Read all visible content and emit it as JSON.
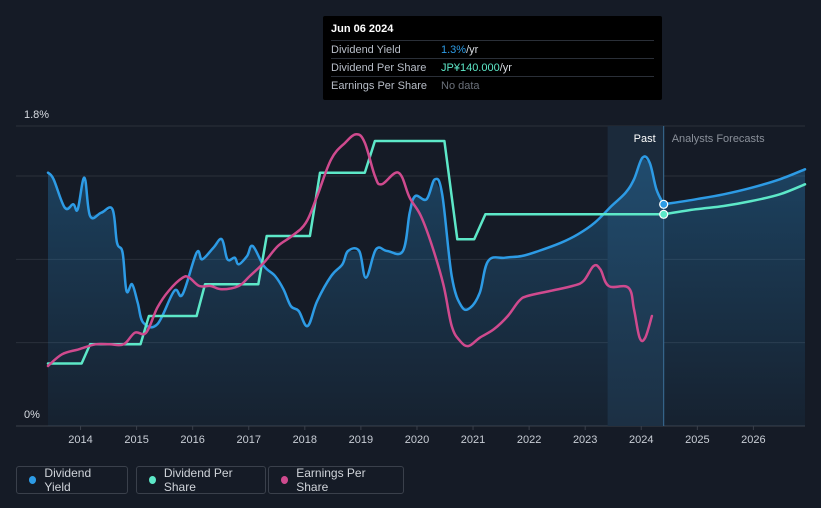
{
  "tooltip": {
    "date": "Jun 06 2024",
    "rows": [
      {
        "label": "Dividend Yield",
        "value": "1.3%",
        "unit": " /yr"
      },
      {
        "label": "Dividend Per Share",
        "value": "JP¥140.000",
        "unit": " /yr"
      },
      {
        "label": "Earnings Per Share",
        "value": "No data",
        "unit": ""
      }
    ]
  },
  "legend": [
    {
      "label": "Dividend Yield",
      "color": "#2d9be5"
    },
    {
      "label": "Dividend Per Share",
      "color": "#5de8c8"
    },
    {
      "label": "Earnings Per Share",
      "color": "#cf4a8e"
    }
  ],
  "chart_data": {
    "type": "line",
    "title": "",
    "y_axis": {
      "top_label": "1.8%",
      "bottom_label": "0%",
      "ylim": [
        0,
        1.8
      ]
    },
    "x_ticks": [
      "2014",
      "2015",
      "2016",
      "2017",
      "2018",
      "2019",
      "2020",
      "2021",
      "2022",
      "2023",
      "2024",
      "2025",
      "2026"
    ],
    "xlim": [
      2013.45,
      2026.95
    ],
    "past_label": "Past",
    "forecast_label": "Analysts Forecasts",
    "past_region": [
      2023.43,
      2024.43
    ],
    "current_x": 2024.43,
    "series": [
      {
        "name": "Dividend Yield",
        "color": "#2d9be5",
        "unit": "%",
        "points": [
          [
            2013.45,
            1.52
          ],
          [
            2013.55,
            1.48
          ],
          [
            2013.75,
            1.31
          ],
          [
            2013.9,
            1.33
          ],
          [
            2013.98,
            1.3
          ],
          [
            2014.1,
            1.49
          ],
          [
            2014.2,
            1.26
          ],
          [
            2014.4,
            1.28
          ],
          [
            2014.6,
            1.3
          ],
          [
            2014.68,
            1.1
          ],
          [
            2014.78,
            1.04
          ],
          [
            2014.85,
            0.81
          ],
          [
            2014.95,
            0.85
          ],
          [
            2015.05,
            0.74
          ],
          [
            2015.15,
            0.62
          ],
          [
            2015.4,
            0.61
          ],
          [
            2015.7,
            0.81
          ],
          [
            2015.85,
            0.79
          ],
          [
            2016.1,
            1.04
          ],
          [
            2016.2,
            1.0
          ],
          [
            2016.4,
            1.07
          ],
          [
            2016.55,
            1.12
          ],
          [
            2016.65,
            1.0
          ],
          [
            2016.78,
            1.01
          ],
          [
            2016.85,
            0.97
          ],
          [
            2017.0,
            1.02
          ],
          [
            2017.1,
            1.08
          ],
          [
            2017.3,
            0.96
          ],
          [
            2017.5,
            0.9
          ],
          [
            2017.65,
            0.82
          ],
          [
            2017.78,
            0.72
          ],
          [
            2017.92,
            0.69
          ],
          [
            2018.08,
            0.6
          ],
          [
            2018.25,
            0.75
          ],
          [
            2018.5,
            0.9
          ],
          [
            2018.7,
            0.97
          ],
          [
            2018.8,
            1.05
          ],
          [
            2019.0,
            1.05
          ],
          [
            2019.12,
            0.89
          ],
          [
            2019.3,
            1.06
          ],
          [
            2019.5,
            1.05
          ],
          [
            2019.78,
            1.05
          ],
          [
            2019.9,
            1.28
          ],
          [
            2020.0,
            1.38
          ],
          [
            2020.2,
            1.36
          ],
          [
            2020.35,
            1.48
          ],
          [
            2020.48,
            1.39
          ],
          [
            2020.65,
            0.9
          ],
          [
            2020.82,
            0.72
          ],
          [
            2020.98,
            0.71
          ],
          [
            2021.15,
            0.8
          ],
          [
            2021.3,
            0.99
          ],
          [
            2021.6,
            1.01
          ],
          [
            2021.9,
            1.02
          ],
          [
            2022.2,
            1.05
          ],
          [
            2022.6,
            1.1
          ],
          [
            2022.9,
            1.15
          ],
          [
            2023.2,
            1.22
          ],
          [
            2023.5,
            1.32
          ],
          [
            2023.75,
            1.4
          ],
          [
            2023.9,
            1.48
          ],
          [
            2024.05,
            1.61
          ],
          [
            2024.18,
            1.58
          ],
          [
            2024.3,
            1.42
          ],
          [
            2024.43,
            1.33
          ]
        ]
      },
      {
        "name": "Dividend Yield Forecast",
        "color": "#2d9be5",
        "unit": "%",
        "points": [
          [
            2024.43,
            1.33
          ],
          [
            2025.0,
            1.36
          ],
          [
            2025.5,
            1.39
          ],
          [
            2026.0,
            1.43
          ],
          [
            2026.5,
            1.48
          ],
          [
            2026.95,
            1.54
          ]
        ]
      },
      {
        "name": "Dividend Per Share",
        "color": "#5de8c8",
        "unit": "JP¥",
        "points": [
          [
            2013.45,
            0.375
          ],
          [
            2014.05,
            0.375
          ],
          [
            2014.2,
            0.49
          ],
          [
            2015.1,
            0.49
          ],
          [
            2015.25,
            0.66
          ],
          [
            2016.1,
            0.66
          ],
          [
            2016.25,
            0.85
          ],
          [
            2017.2,
            0.85
          ],
          [
            2017.35,
            1.14
          ],
          [
            2018.12,
            1.14
          ],
          [
            2018.3,
            1.52
          ],
          [
            2019.1,
            1.52
          ],
          [
            2019.28,
            1.71
          ],
          [
            2020.52,
            1.71
          ],
          [
            2020.75,
            1.12
          ],
          [
            2021.05,
            1.12
          ],
          [
            2021.25,
            1.27
          ],
          [
            2024.43,
            1.27
          ]
        ]
      },
      {
        "name": "Dividend Per Share Forecast",
        "color": "#5de8c8",
        "unit": "JP¥",
        "points": [
          [
            2024.43,
            1.27
          ],
          [
            2025.0,
            1.3
          ],
          [
            2025.5,
            1.32
          ],
          [
            2026.0,
            1.35
          ],
          [
            2026.5,
            1.39
          ],
          [
            2026.95,
            1.45
          ]
        ]
      },
      {
        "name": "Earnings Per Share",
        "color": "#cf4a8e",
        "unit": "JP¥",
        "points": [
          [
            2013.45,
            0.36
          ],
          [
            2013.7,
            0.43
          ],
          [
            2014.0,
            0.46
          ],
          [
            2014.3,
            0.49
          ],
          [
            2014.55,
            0.49
          ],
          [
            2014.8,
            0.49
          ],
          [
            2015.0,
            0.56
          ],
          [
            2015.2,
            0.56
          ],
          [
            2015.4,
            0.71
          ],
          [
            2015.6,
            0.81
          ],
          [
            2015.85,
            0.89
          ],
          [
            2015.97,
            0.89
          ],
          [
            2016.15,
            0.84
          ],
          [
            2016.35,
            0.84
          ],
          [
            2016.55,
            0.82
          ],
          [
            2016.85,
            0.84
          ],
          [
            2017.05,
            0.9
          ],
          [
            2017.3,
            0.98
          ],
          [
            2017.55,
            1.08
          ],
          [
            2017.8,
            1.14
          ],
          [
            2018.05,
            1.22
          ],
          [
            2018.25,
            1.38
          ],
          [
            2018.5,
            1.6
          ],
          [
            2018.75,
            1.7
          ],
          [
            2018.95,
            1.75
          ],
          [
            2019.1,
            1.7
          ],
          [
            2019.28,
            1.5
          ],
          [
            2019.4,
            1.45
          ],
          [
            2019.7,
            1.52
          ],
          [
            2019.9,
            1.37
          ],
          [
            2020.1,
            1.26
          ],
          [
            2020.3,
            1.08
          ],
          [
            2020.5,
            0.85
          ],
          [
            2020.65,
            0.6
          ],
          [
            2020.8,
            0.51
          ],
          [
            2020.95,
            0.48
          ],
          [
            2021.15,
            0.53
          ],
          [
            2021.4,
            0.58
          ],
          [
            2021.65,
            0.66
          ],
          [
            2021.85,
            0.75
          ],
          [
            2022.0,
            0.78
          ],
          [
            2022.4,
            0.81
          ],
          [
            2022.8,
            0.84
          ],
          [
            2023.0,
            0.87
          ],
          [
            2023.18,
            0.96
          ],
          [
            2023.3,
            0.94
          ],
          [
            2023.45,
            0.84
          ],
          [
            2023.8,
            0.83
          ],
          [
            2023.9,
            0.7
          ],
          [
            2024.0,
            0.53
          ],
          [
            2024.1,
            0.53
          ],
          [
            2024.22,
            0.66
          ]
        ]
      }
    ]
  }
}
